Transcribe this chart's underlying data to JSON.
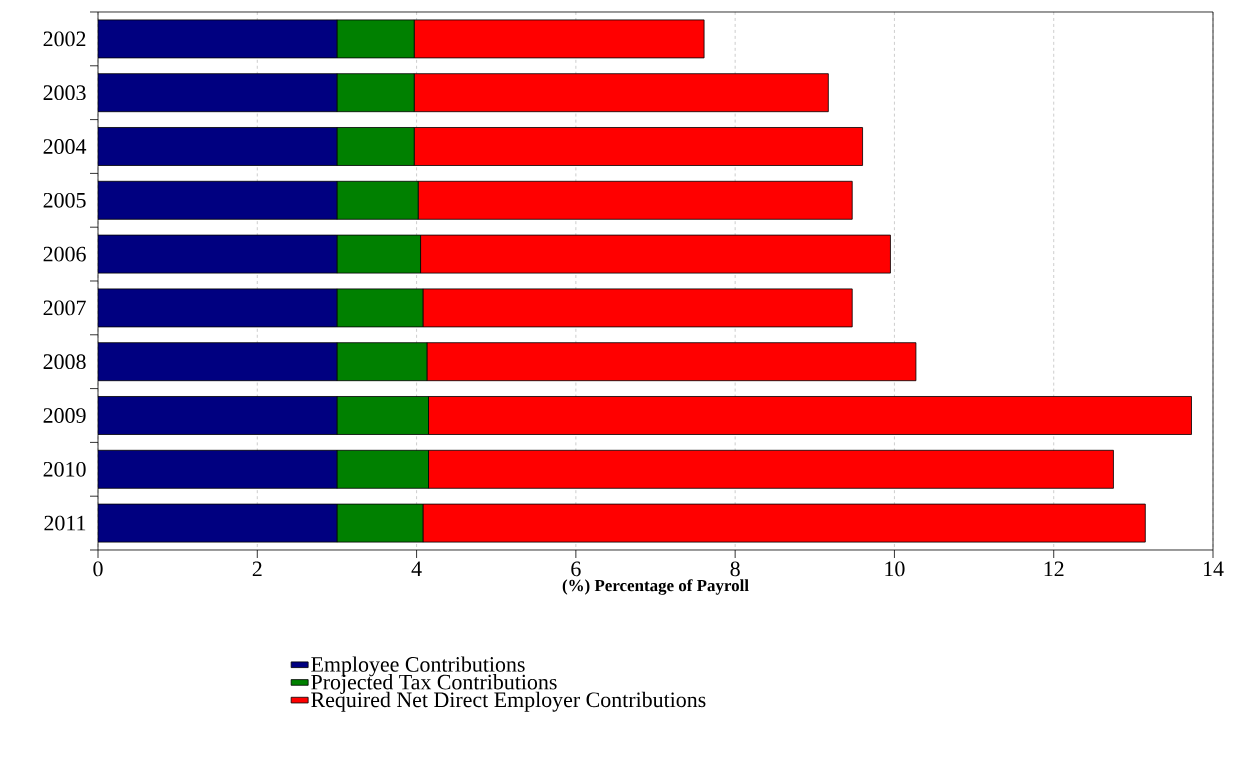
{
  "chart_data": {
    "type": "bar",
    "orientation": "horizontal",
    "stacked": true,
    "xlabel": "(%) Percentage of Payroll",
    "categories": [
      "2002",
      "2003",
      "2004",
      "2005",
      "2006",
      "2007",
      "2008",
      "2009",
      "2010",
      "2011"
    ],
    "series": [
      {
        "name": "Employee Contributions",
        "color": "#000080",
        "values": [
          3.0,
          3.0,
          3.0,
          3.0,
          3.0,
          3.0,
          3.0,
          3.0,
          3.0,
          3.0
        ]
      },
      {
        "name": "Projected Tax Contributions",
        "color": "#008000",
        "values": [
          0.97,
          0.97,
          0.97,
          1.02,
          1.05,
          1.08,
          1.13,
          1.15,
          1.15,
          1.08
        ]
      },
      {
        "name": "Required Net Direct Employer Contributions",
        "color": "#ff0000",
        "values": [
          3.64,
          5.2,
          5.63,
          5.45,
          5.9,
          5.39,
          6.14,
          9.58,
          8.6,
          9.07
        ]
      }
    ],
    "xlim": [
      0,
      14
    ],
    "xticks": [
      0,
      2,
      4,
      6,
      8,
      10,
      12,
      14
    ],
    "grid": "x",
    "legend": "bottom"
  }
}
